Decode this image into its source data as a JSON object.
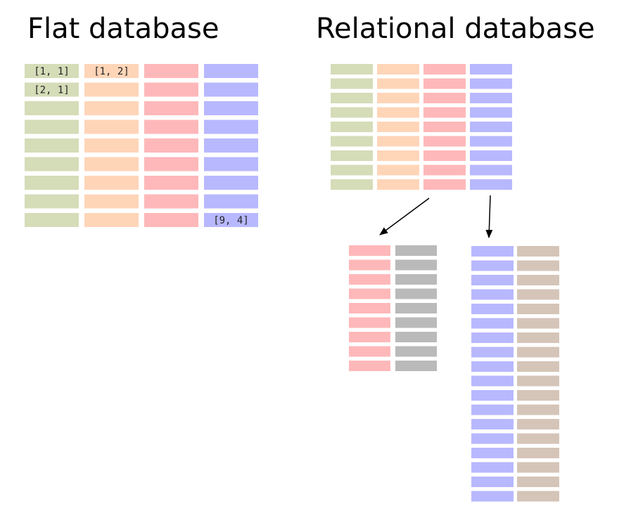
{
  "titles": {
    "flat": "Flat database",
    "relational": "Relational database"
  },
  "colors": {
    "green": "#d5dcb8",
    "orange": "#ffd5b8",
    "red": "#ffb8ba",
    "blue": "#b8b8ff",
    "gray": "#bababa",
    "tan": "#d5c5b8",
    "arrow": "#000000"
  },
  "flat_table": {
    "rows": 9,
    "columns": [
      "green",
      "orange",
      "red",
      "blue"
    ],
    "cell_labels": [
      {
        "row": 1,
        "col": 1,
        "text": "[1, 1]"
      },
      {
        "row": 1,
        "col": 2,
        "text": "[1, 2]"
      },
      {
        "row": 2,
        "col": 1,
        "text": "[2, 1]"
      },
      {
        "row": 9,
        "col": 4,
        "text": "[9, 4]"
      }
    ]
  },
  "relational_main_table": {
    "rows": 9,
    "columns": [
      "green",
      "orange",
      "red",
      "blue"
    ]
  },
  "lookup_table_left": {
    "rows": 9,
    "columns": [
      "red",
      "gray"
    ],
    "linked_from_column": "red"
  },
  "lookup_table_right": {
    "rows": 18,
    "columns": [
      "blue",
      "tan"
    ],
    "linked_from_column": "blue"
  }
}
